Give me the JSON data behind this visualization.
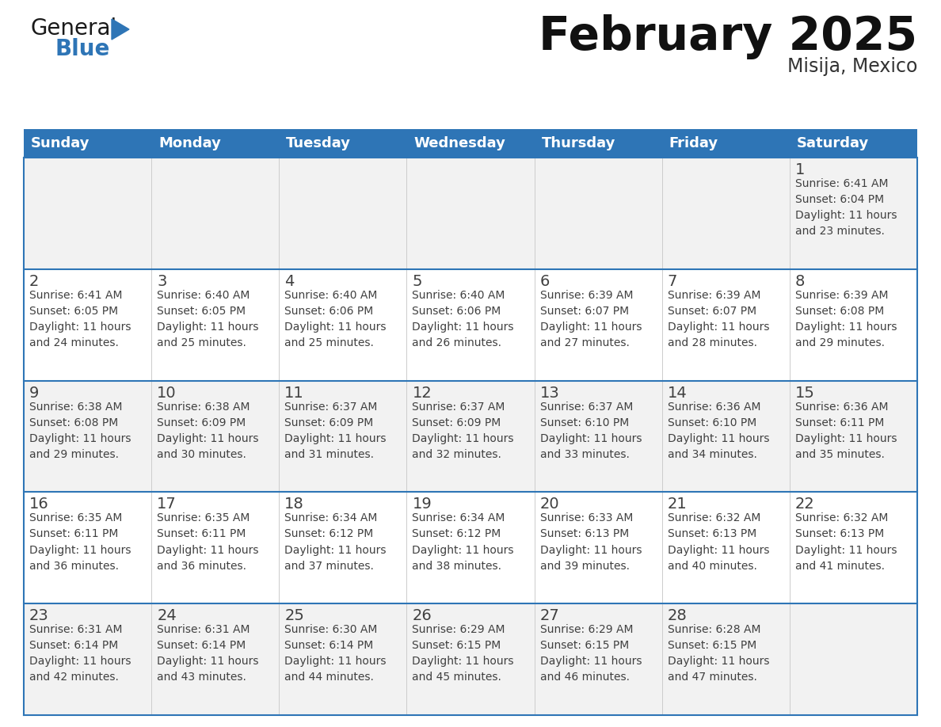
{
  "title": "February 2025",
  "subtitle": "Misija, Mexico",
  "header_color": "#2E75B6",
  "header_text_color": "#FFFFFF",
  "border_color": "#2E75B6",
  "text_color": "#404040",
  "day_number_color": "#404040",
  "cell_bg_even": "#F2F2F2",
  "cell_bg_odd": "#FFFFFF",
  "days_of_week": [
    "Sunday",
    "Monday",
    "Tuesday",
    "Wednesday",
    "Thursday",
    "Friday",
    "Saturday"
  ],
  "weeks": [
    [
      {
        "day": null,
        "info": null
      },
      {
        "day": null,
        "info": null
      },
      {
        "day": null,
        "info": null
      },
      {
        "day": null,
        "info": null
      },
      {
        "day": null,
        "info": null
      },
      {
        "day": null,
        "info": null
      },
      {
        "day": 1,
        "info": "Sunrise: 6:41 AM\nSunset: 6:04 PM\nDaylight: 11 hours\nand 23 minutes."
      }
    ],
    [
      {
        "day": 2,
        "info": "Sunrise: 6:41 AM\nSunset: 6:05 PM\nDaylight: 11 hours\nand 24 minutes."
      },
      {
        "day": 3,
        "info": "Sunrise: 6:40 AM\nSunset: 6:05 PM\nDaylight: 11 hours\nand 25 minutes."
      },
      {
        "day": 4,
        "info": "Sunrise: 6:40 AM\nSunset: 6:06 PM\nDaylight: 11 hours\nand 25 minutes."
      },
      {
        "day": 5,
        "info": "Sunrise: 6:40 AM\nSunset: 6:06 PM\nDaylight: 11 hours\nand 26 minutes."
      },
      {
        "day": 6,
        "info": "Sunrise: 6:39 AM\nSunset: 6:07 PM\nDaylight: 11 hours\nand 27 minutes."
      },
      {
        "day": 7,
        "info": "Sunrise: 6:39 AM\nSunset: 6:07 PM\nDaylight: 11 hours\nand 28 minutes."
      },
      {
        "day": 8,
        "info": "Sunrise: 6:39 AM\nSunset: 6:08 PM\nDaylight: 11 hours\nand 29 minutes."
      }
    ],
    [
      {
        "day": 9,
        "info": "Sunrise: 6:38 AM\nSunset: 6:08 PM\nDaylight: 11 hours\nand 29 minutes."
      },
      {
        "day": 10,
        "info": "Sunrise: 6:38 AM\nSunset: 6:09 PM\nDaylight: 11 hours\nand 30 minutes."
      },
      {
        "day": 11,
        "info": "Sunrise: 6:37 AM\nSunset: 6:09 PM\nDaylight: 11 hours\nand 31 minutes."
      },
      {
        "day": 12,
        "info": "Sunrise: 6:37 AM\nSunset: 6:09 PM\nDaylight: 11 hours\nand 32 minutes."
      },
      {
        "day": 13,
        "info": "Sunrise: 6:37 AM\nSunset: 6:10 PM\nDaylight: 11 hours\nand 33 minutes."
      },
      {
        "day": 14,
        "info": "Sunrise: 6:36 AM\nSunset: 6:10 PM\nDaylight: 11 hours\nand 34 minutes."
      },
      {
        "day": 15,
        "info": "Sunrise: 6:36 AM\nSunset: 6:11 PM\nDaylight: 11 hours\nand 35 minutes."
      }
    ],
    [
      {
        "day": 16,
        "info": "Sunrise: 6:35 AM\nSunset: 6:11 PM\nDaylight: 11 hours\nand 36 minutes."
      },
      {
        "day": 17,
        "info": "Sunrise: 6:35 AM\nSunset: 6:11 PM\nDaylight: 11 hours\nand 36 minutes."
      },
      {
        "day": 18,
        "info": "Sunrise: 6:34 AM\nSunset: 6:12 PM\nDaylight: 11 hours\nand 37 minutes."
      },
      {
        "day": 19,
        "info": "Sunrise: 6:34 AM\nSunset: 6:12 PM\nDaylight: 11 hours\nand 38 minutes."
      },
      {
        "day": 20,
        "info": "Sunrise: 6:33 AM\nSunset: 6:13 PM\nDaylight: 11 hours\nand 39 minutes."
      },
      {
        "day": 21,
        "info": "Sunrise: 6:32 AM\nSunset: 6:13 PM\nDaylight: 11 hours\nand 40 minutes."
      },
      {
        "day": 22,
        "info": "Sunrise: 6:32 AM\nSunset: 6:13 PM\nDaylight: 11 hours\nand 41 minutes."
      }
    ],
    [
      {
        "day": 23,
        "info": "Sunrise: 6:31 AM\nSunset: 6:14 PM\nDaylight: 11 hours\nand 42 minutes."
      },
      {
        "day": 24,
        "info": "Sunrise: 6:31 AM\nSunset: 6:14 PM\nDaylight: 11 hours\nand 43 minutes."
      },
      {
        "day": 25,
        "info": "Sunrise: 6:30 AM\nSunset: 6:14 PM\nDaylight: 11 hours\nand 44 minutes."
      },
      {
        "day": 26,
        "info": "Sunrise: 6:29 AM\nSunset: 6:15 PM\nDaylight: 11 hours\nand 45 minutes."
      },
      {
        "day": 27,
        "info": "Sunrise: 6:29 AM\nSunset: 6:15 PM\nDaylight: 11 hours\nand 46 minutes."
      },
      {
        "day": 28,
        "info": "Sunrise: 6:28 AM\nSunset: 6:15 PM\nDaylight: 11 hours\nand 47 minutes."
      },
      {
        "day": null,
        "info": null
      }
    ]
  ],
  "logo_general_color": "#1a1a1a",
  "logo_blue_color": "#2E75B6",
  "logo_triangle_color": "#2E75B6",
  "title_fontsize": 42,
  "subtitle_fontsize": 17,
  "header_fontsize": 13,
  "day_num_fontsize": 14,
  "info_fontsize": 10,
  "logo_fontsize_general": 20,
  "logo_fontsize_blue": 20
}
